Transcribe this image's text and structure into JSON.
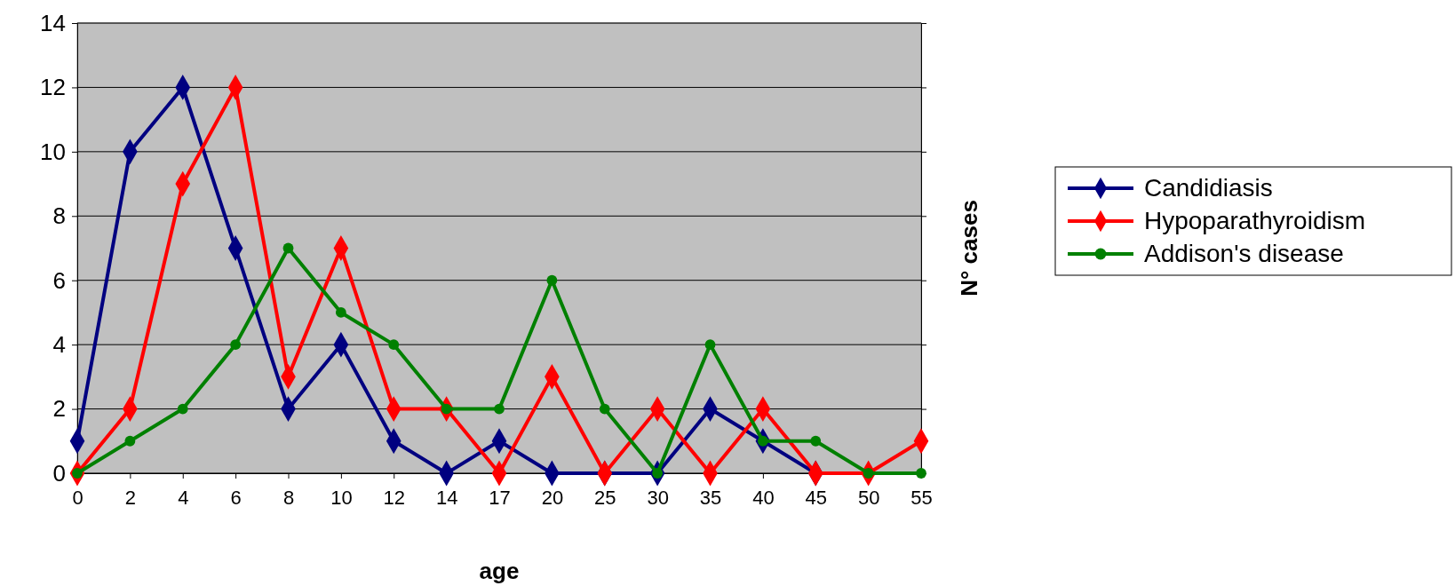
{
  "chart_data": {
    "type": "line",
    "xlabel": "age",
    "ylabel": "N° cases",
    "categories": [
      "0",
      "2",
      "4",
      "6",
      "8",
      "10",
      "12",
      "14",
      "17",
      "20",
      "25",
      "30",
      "35",
      "40",
      "45",
      "50",
      "55"
    ],
    "series": [
      {
        "name": "Candidiasis",
        "color": "#000080",
        "marker": "diamond",
        "values": [
          1,
          10,
          12,
          7,
          2,
          4,
          1,
          0,
          1,
          0,
          0,
          0,
          2,
          1,
          0,
          null,
          null
        ]
      },
      {
        "name": "Hypoparathyroidism",
        "color": "#ff0000",
        "marker": "diamond",
        "values": [
          0,
          2,
          9,
          12,
          3,
          7,
          2,
          2,
          0,
          3,
          0,
          2,
          0,
          2,
          0,
          0,
          1
        ]
      },
      {
        "name": "Addison's disease",
        "color": "#008000",
        "marker": "circle",
        "values": [
          0,
          1,
          2,
          4,
          7,
          5,
          4,
          2,
          2,
          6,
          2,
          0,
          4,
          1,
          1,
          0,
          0
        ]
      }
    ],
    "ylim": [
      0,
      14
    ],
    "yticks": [
      0,
      2,
      4,
      6,
      8,
      10,
      12,
      14
    ],
    "grid": "y",
    "legend": "right"
  }
}
